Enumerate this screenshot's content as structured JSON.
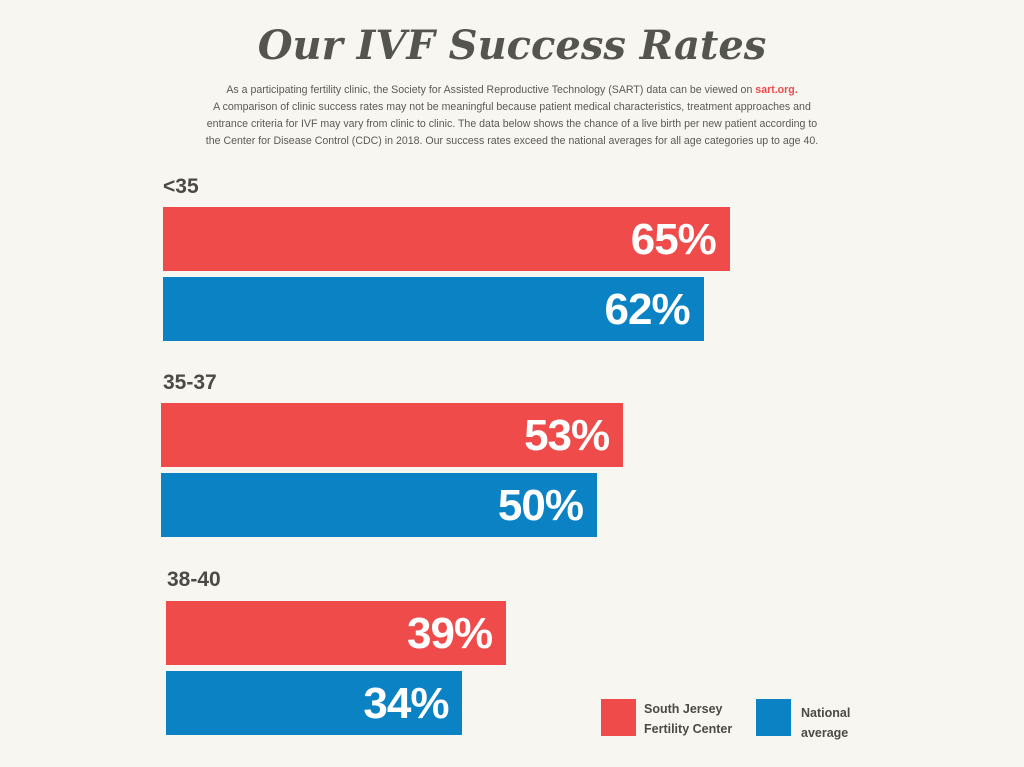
{
  "title": "Our IVF Success Rates",
  "intro": {
    "line1_prefix": "As a participating fertility clinic, the Society for Assisted Reproductive Technology (SART) data can be viewed on",
    "link_text": "sart.org.",
    "line2": "A comparison of clinic success rates may not be meaningful because patient medical characteristics, treatment approaches and",
    "line3": "entrance criteria for IVF may vary from clinic to clinic. The data below shows the chance of a live birth per new patient according to",
    "line4": "the Center for Disease Control (CDC) in 2018. Our success rates exceed the national averages for all age categories up to age 40."
  },
  "colors": {
    "clinic": "#ef4b4b",
    "national": "#0a82c4",
    "background": "#f8f6f1",
    "text": "#4a4a46"
  },
  "chart_data": {
    "type": "bar",
    "orientation": "horizontal",
    "categories": [
      "<35",
      "35-37",
      "38-40"
    ],
    "series": [
      {
        "name": "South Jersey Fertility Center",
        "values": [
          65,
          53,
          39
        ],
        "labels": [
          "65%",
          "53%",
          "39%"
        ]
      },
      {
        "name": "National average",
        "values": [
          62,
          50,
          34
        ],
        "labels": [
          "62%",
          "50%",
          "34%"
        ]
      }
    ],
    "xlim": [
      0,
      100
    ],
    "unit": "%",
    "grid": false,
    "legend": "bottom-right"
  },
  "legend": {
    "clinic_line1": "South Jersey",
    "clinic_line2": "Fertility Center",
    "national_line1": "National",
    "national_line2": "average"
  }
}
